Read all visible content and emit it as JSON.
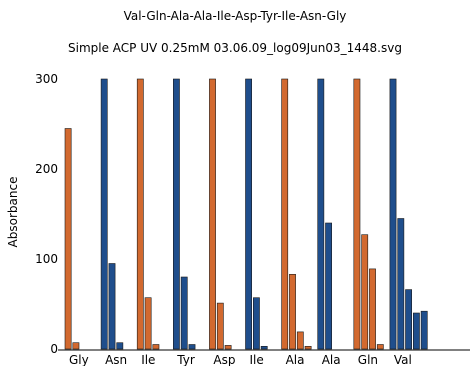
{
  "chart_data": {
    "type": "bar",
    "title": "Val-Gln-Ala-Ala-Ile-Asp-Tyr-Ile-Asn-Gly",
    "subtitle": "Simple ACP UV 0.25mM 03.06.09_log09Jun03_1448.svg",
    "xlabel": "",
    "ylabel": "Absorbance",
    "ylim": [
      0,
      300
    ],
    "yticks": [
      0,
      100,
      200,
      300
    ],
    "grid": false,
    "colors": {
      "orange": "#d2692f",
      "blue": "#1f4e8c"
    },
    "groups": [
      {
        "label": "Gly",
        "color": "orange",
        "values": [
          245,
          7
        ]
      },
      {
        "label": "Asn",
        "color": "blue",
        "values": [
          300,
          95,
          7
        ]
      },
      {
        "label": "Ile",
        "color": "orange",
        "values": [
          300,
          57,
          5
        ]
      },
      {
        "label": "Tyr",
        "color": "blue",
        "values": [
          300,
          80,
          5
        ]
      },
      {
        "label": "Asp",
        "color": "orange",
        "values": [
          300,
          51,
          4
        ]
      },
      {
        "label": "Ile",
        "color": "blue",
        "values": [
          300,
          57,
          3
        ]
      },
      {
        "label": "Ala",
        "color": "orange",
        "values": [
          300,
          83,
          19,
          3
        ]
      },
      {
        "label": "Ala",
        "color": "blue",
        "values": [
          300,
          140
        ]
      },
      {
        "label": "Gln",
        "color": "orange",
        "values": [
          300,
          127,
          89,
          5
        ]
      },
      {
        "label": "Val",
        "color": "blue",
        "values": [
          300,
          145,
          66,
          40,
          42
        ]
      }
    ]
  }
}
